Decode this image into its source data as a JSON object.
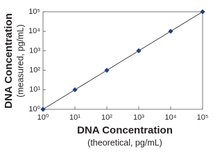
{
  "chart_data": {
    "type": "scatter",
    "line": true,
    "color": "#1f3f7f",
    "line_color": "#333333",
    "x": [
      1,
      10,
      100,
      1000,
      10000,
      100000
    ],
    "values": [
      1,
      10,
      100,
      1000,
      10000,
      100000
    ],
    "xscale": "log",
    "yscale": "log",
    "xlim": [
      1,
      100000
    ],
    "ylim": [
      1,
      100000
    ],
    "xticks": [
      {
        "value": 1,
        "label": "10⁰"
      },
      {
        "value": 10,
        "label": "10¹"
      },
      {
        "value": 100,
        "label": "10²"
      },
      {
        "value": 1000,
        "label": "10³"
      },
      {
        "value": 10000,
        "label": "10⁴"
      },
      {
        "value": 100000,
        "label": "10⁵"
      }
    ],
    "yticks": [
      {
        "value": 1,
        "label": "10⁰"
      },
      {
        "value": 10,
        "label": "10¹"
      },
      {
        "value": 100,
        "label": "10²"
      },
      {
        "value": 1000,
        "label": "10³"
      },
      {
        "value": 10000,
        "label": "10⁴"
      },
      {
        "value": 100000,
        "label": "10⁵"
      }
    ],
    "x_label": [
      "DNA Concentration",
      "(theoretical, pg/mL)"
    ],
    "y_label": [
      "DNA Concentration",
      "(measured, pg/mL)"
    ]
  }
}
